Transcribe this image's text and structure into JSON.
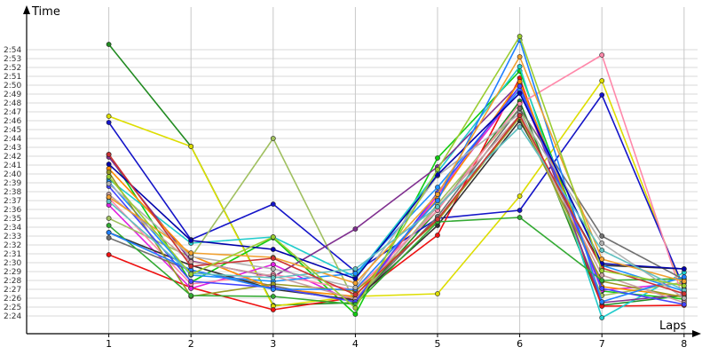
{
  "chart_data": {
    "type": "line",
    "title": "",
    "xlabel": "Laps",
    "ylabel": "Time",
    "x": [
      1,
      2,
      3,
      4,
      5,
      6,
      7,
      8
    ],
    "xticks": [
      "1",
      "2",
      "3",
      "4",
      "5",
      "6",
      "7",
      "8"
    ],
    "yticks": [
      "2:24",
      "2:25",
      "2:26",
      "2:27",
      "2:28",
      "2:29",
      "2:30",
      "2:31",
      "2:32",
      "2:33",
      "2:34",
      "2:35",
      "2:36",
      "2:37",
      "2:38",
      "2:39",
      "2:40",
      "2:41",
      "2:42",
      "2:43",
      "2:44",
      "2:45",
      "2:46",
      "2:47",
      "2:48",
      "2:49",
      "2:50",
      "2:51",
      "2:52",
      "2:53",
      "2:54"
    ],
    "ylim_seconds": [
      143.5,
      158
    ],
    "grid": true,
    "legend": "none",
    "units": "seconds (m:ss = 2:xx)",
    "series": [
      {
        "color": "#228B22",
        "values": [
          174.6,
          163.1,
          145.2,
          145.5,
          155.9,
          168.2,
          145.2,
          146.3
        ]
      },
      {
        "color": "#dddd00",
        "values": [
          166.5,
          163.1,
          145.1,
          146.2,
          146.5,
          157.5,
          170.5,
          146.7
        ]
      },
      {
        "color": "#1414c8",
        "values": [
          165.8,
          152.6,
          156.6,
          149.0,
          155.0,
          155.9,
          168.9,
          147.1
        ]
      },
      {
        "color": "#ee1111",
        "values": [
          150.9,
          147.2,
          144.7,
          146.1,
          153.1,
          170.8,
          145.1,
          145.2
        ]
      },
      {
        "color": "#11cc11",
        "values": [
          162.2,
          147.8,
          152.8,
          144.2,
          161.8,
          171.6,
          146.8,
          145.9
        ]
      },
      {
        "color": "#e020e0",
        "values": [
          156.5,
          147.1,
          149.8,
          145.5,
          157.6,
          169.6,
          146.9,
          147.7
        ]
      },
      {
        "color": "#22cccc",
        "values": [
          159.4,
          152.2,
          152.9,
          148.4,
          160.2,
          172.1,
          143.8,
          148.9
        ]
      },
      {
        "color": "#a0c060",
        "values": [
          155.0,
          150.6,
          164.0,
          145.5,
          156.6,
          167.4,
          146.3,
          147.8
        ]
      },
      {
        "color": "#803090",
        "values": [
          161.9,
          150.2,
          148.4,
          153.8,
          160.8,
          170.2,
          145.5,
          146.4
        ]
      },
      {
        "color": "#ff88aa",
        "values": [
          157.3,
          147.6,
          148.7,
          146.9,
          155.9,
          167.9,
          173.4,
          145.7
        ]
      },
      {
        "color": "#707070",
        "values": [
          152.8,
          149.1,
          147.4,
          145.6,
          155.2,
          167.4,
          153.0,
          148.1
        ]
      },
      {
        "color": "#333333",
        "values": [
          153.4,
          149.7,
          147.0,
          145.8,
          154.2,
          166.0,
          149.7,
          149.3
        ]
      },
      {
        "color": "#1e90ff",
        "values": [
          159.1,
          148.6,
          147.9,
          148.8,
          158.5,
          169.5,
          149.7,
          146.8
        ]
      },
      {
        "color": "#ff8c00",
        "values": [
          160.6,
          150.8,
          147.1,
          146.2,
          157.2,
          170.4,
          147.3,
          146.2
        ]
      },
      {
        "color": "#999922",
        "values": [
          160.2,
          146.2,
          147.6,
          146.8,
          154.7,
          166.4,
          147.9,
          146.1
        ]
      },
      {
        "color": "#c8a0a0",
        "values": [
          157.7,
          150.1,
          148.5,
          145.9,
          156.3,
          166.6,
          148.6,
          145.5
        ]
      },
      {
        "color": "#4444ff",
        "values": [
          158.6,
          147.9,
          147.2,
          145.6,
          157.9,
          169.9,
          147.1,
          145.3
        ]
      },
      {
        "color": "#33aa33",
        "values": [
          154.2,
          146.3,
          146.2,
          145.3,
          154.6,
          155.1,
          148.0,
          148.2
        ]
      },
      {
        "color": "#2080ff",
        "values": [
          153.4,
          149.2,
          147.0,
          147.0,
          157.0,
          175.1,
          145.6,
          148.4
        ]
      },
      {
        "color": "#b0b0b0",
        "values": [
          158.9,
          150.7,
          149.3,
          147.2,
          159.8,
          166.8,
          152.2,
          146.0
        ]
      },
      {
        "color": "#0000aa",
        "values": [
          161.1,
          152.5,
          151.5,
          148.2,
          159.9,
          169.1,
          149.9,
          149.3
        ]
      },
      {
        "color": "#f0a030",
        "values": [
          157.4,
          151.1,
          150.6,
          147.7,
          157.7,
          173.2,
          150.4,
          147.9
        ]
      },
      {
        "color": "#60c0c0",
        "values": [
          156.9,
          148.8,
          148.3,
          149.3,
          156.3,
          165.3,
          151.4,
          146.9
        ]
      },
      {
        "color": "#cc3333",
        "values": [
          162.2,
          149.6,
          150.5,
          146.4,
          154.9,
          166.6,
          149.4,
          146.5
        ]
      },
      {
        "color": "#9acd32",
        "values": [
          159.7,
          148.7,
          152.9,
          144.9,
          160.5,
          175.5,
          149.1,
          147.4
        ]
      }
    ]
  }
}
